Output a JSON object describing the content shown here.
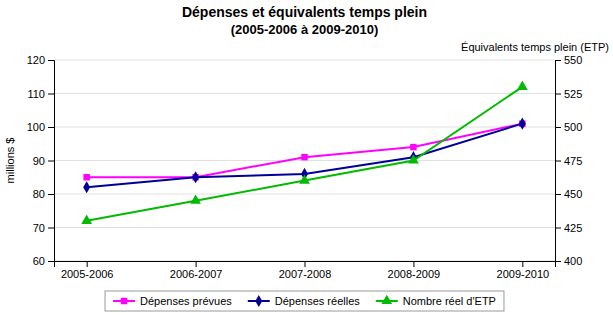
{
  "chart_data": {
    "type": "line",
    "title": "Dépenses et équivalents temps plein",
    "subtitle": "(2005-2006 à 2009-2010)",
    "categories": [
      "2005-2006",
      "2006-2007",
      "2007-2008",
      "2008-2009",
      "2009-2010"
    ],
    "series": [
      {
        "name": "Dépenses prévues",
        "color": "#FF00FF",
        "marker": "square",
        "values": [
          85,
          85,
          91,
          94,
          101
        ]
      },
      {
        "name": "Dépenses réelles",
        "color": "#000099",
        "marker": "diamond",
        "values": [
          82,
          85,
          86,
          91,
          101
        ]
      },
      {
        "name": "Nombre réel d'ETP",
        "color": "#00BB00",
        "marker": "triangle",
        "axis": "y2",
        "values": [
          430,
          445,
          460,
          475,
          530
        ]
      }
    ],
    "y_label": "millions $",
    "y2_label": "Équivalents temps plein (ETP)",
    "ylim": [
      60,
      120
    ],
    "yticks": [
      60,
      70,
      80,
      90,
      100,
      110,
      120
    ],
    "y2lim": [
      400,
      550
    ],
    "y2ticks": [
      400,
      425,
      450,
      475,
      500,
      525,
      550
    ],
    "grid": true,
    "legend": "bottom"
  }
}
